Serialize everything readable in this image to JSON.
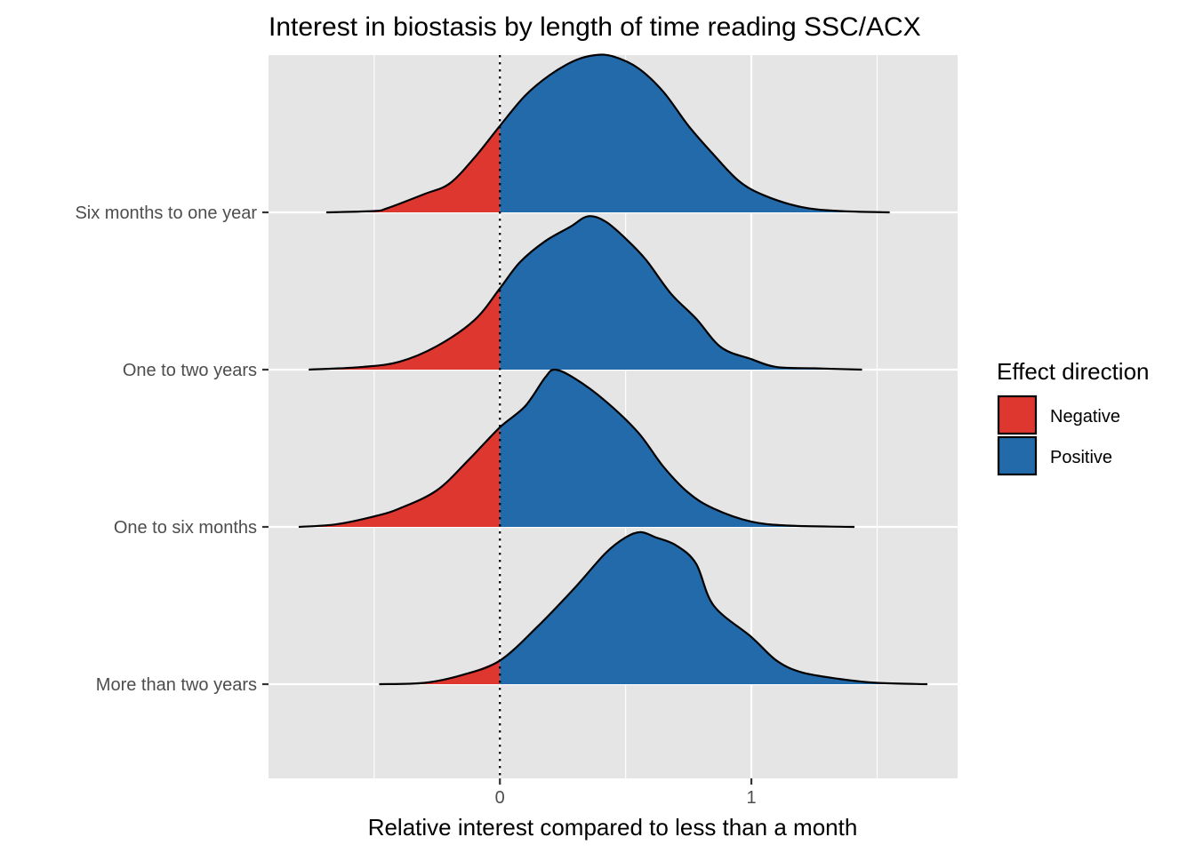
{
  "chart_data": {
    "type": "ridgeline-density",
    "title": "Interest in biostasis by length of time reading SSC/ACX",
    "xlabel": "Relative interest compared to less than a month",
    "ylabel": "",
    "xlim": [
      -0.92,
      1.82
    ],
    "x_ticks": [
      0,
      1
    ],
    "x_tick_labels": [
      "0",
      "1"
    ],
    "reference_line": {
      "x": 0,
      "style": "dotted"
    },
    "grid": true,
    "legend": {
      "title": "Effect direction",
      "position": "right",
      "entries": [
        {
          "label": "Negative",
          "color": "#de3730"
        },
        {
          "label": "Positive",
          "color": "#226aa9"
        }
      ]
    },
    "categories": [
      "Six months to one year",
      "One to two years",
      "One to six months",
      "More than two years"
    ],
    "series": [
      {
        "category": "Six months to one year",
        "density": [
          [
            -0.69,
            0.0
          ],
          [
            -0.5,
            0.01
          ],
          [
            -0.45,
            0.03
          ],
          [
            -0.3,
            0.14
          ],
          [
            -0.2,
            0.22
          ],
          [
            -0.1,
            0.42
          ],
          [
            0.0,
            0.66
          ],
          [
            0.1,
            0.89
          ],
          [
            0.2,
            1.05
          ],
          [
            0.3,
            1.16
          ],
          [
            0.38,
            1.2
          ],
          [
            0.45,
            1.19
          ],
          [
            0.55,
            1.1
          ],
          [
            0.65,
            0.92
          ],
          [
            0.75,
            0.66
          ],
          [
            0.85,
            0.44
          ],
          [
            0.95,
            0.24
          ],
          [
            1.05,
            0.13
          ],
          [
            1.2,
            0.04
          ],
          [
            1.35,
            0.01
          ],
          [
            1.55,
            0.0
          ]
        ]
      },
      {
        "category": "One to two years",
        "density": [
          [
            -0.76,
            0.0
          ],
          [
            -0.55,
            0.02
          ],
          [
            -0.4,
            0.06
          ],
          [
            -0.25,
            0.18
          ],
          [
            -0.1,
            0.38
          ],
          [
            0.0,
            0.62
          ],
          [
            0.08,
            0.82
          ],
          [
            0.18,
            0.98
          ],
          [
            0.28,
            1.09
          ],
          [
            0.35,
            1.17
          ],
          [
            0.42,
            1.13
          ],
          [
            0.5,
            1.0
          ],
          [
            0.58,
            0.84
          ],
          [
            0.68,
            0.58
          ],
          [
            0.78,
            0.39
          ],
          [
            0.88,
            0.17
          ],
          [
            1.0,
            0.08
          ],
          [
            1.1,
            0.02
          ],
          [
            1.25,
            0.01
          ],
          [
            1.44,
            0.0
          ]
        ]
      },
      {
        "category": "One to six months",
        "density": [
          [
            -0.8,
            0.0
          ],
          [
            -0.65,
            0.02
          ],
          [
            -0.5,
            0.08
          ],
          [
            -0.4,
            0.14
          ],
          [
            -0.25,
            0.28
          ],
          [
            -0.12,
            0.52
          ],
          [
            0.0,
            0.76
          ],
          [
            0.1,
            0.92
          ],
          [
            0.18,
            1.14
          ],
          [
            0.22,
            1.2
          ],
          [
            0.3,
            1.13
          ],
          [
            0.42,
            0.96
          ],
          [
            0.55,
            0.72
          ],
          [
            0.65,
            0.46
          ],
          [
            0.75,
            0.26
          ],
          [
            0.85,
            0.14
          ],
          [
            1.0,
            0.04
          ],
          [
            1.15,
            0.01
          ],
          [
            1.41,
            0.0
          ]
        ]
      },
      {
        "category": "More than two years",
        "density": [
          [
            -0.48,
            0.0
          ],
          [
            -0.3,
            0.01
          ],
          [
            -0.15,
            0.07
          ],
          [
            0.0,
            0.18
          ],
          [
            0.15,
            0.44
          ],
          [
            0.3,
            0.74
          ],
          [
            0.42,
            1.0
          ],
          [
            0.5,
            1.12
          ],
          [
            0.56,
            1.16
          ],
          [
            0.62,
            1.12
          ],
          [
            0.7,
            1.06
          ],
          [
            0.78,
            0.92
          ],
          [
            0.85,
            0.6
          ],
          [
            1.0,
            0.36
          ],
          [
            1.1,
            0.18
          ],
          [
            1.2,
            0.09
          ],
          [
            1.35,
            0.04
          ],
          [
            1.5,
            0.01
          ],
          [
            1.7,
            0.0
          ]
        ]
      }
    ]
  }
}
